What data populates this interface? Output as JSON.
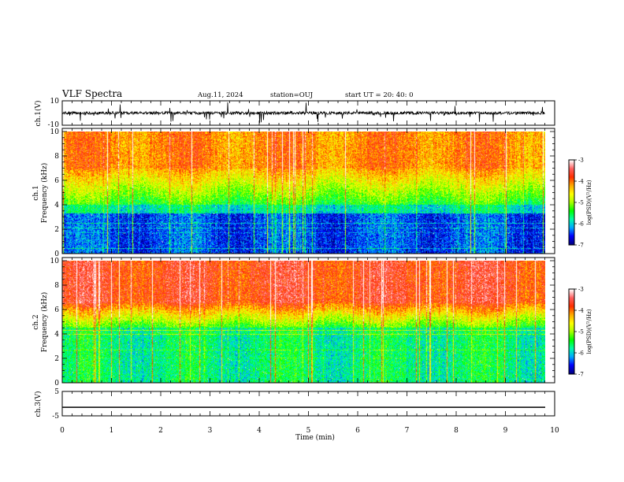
{
  "header": {
    "title": "VLF Spectra",
    "date": "Aug.11, 2024",
    "station": "station=OUJ",
    "start_time": "start  UT =   20: 40: 0"
  },
  "chart_data": [
    {
      "type": "line",
      "panel": "ch1-waveform",
      "ylabel": "ch.1(V)",
      "ylim": [
        -10,
        10
      ],
      "ytick_labels": [
        "10",
        "-10"
      ],
      "xlim": [
        0,
        10
      ],
      "baseline": 0,
      "note": "noisy waveform with spikes"
    },
    {
      "type": "heatmap",
      "panel": "ch1-spectrogram",
      "ylabel_line1": "ch.1",
      "ylabel_line2": "Frequency  (kHz)",
      "ylim": [
        0,
        10
      ],
      "ytick_labels": [
        "0",
        "2",
        "4",
        "6",
        "8",
        "10"
      ],
      "xlim": [
        0,
        9.8
      ],
      "colorbar": {
        "label": "log(PSD)(V²/Hz)",
        "range": [
          -7,
          -3
        ],
        "tick_labels": [
          "-3",
          "-4",
          "-5",
          "-6",
          "-7"
        ],
        "colors": [
          "#000080",
          "#0000ff",
          "#00aaff",
          "#00ffaa",
          "#00ff00",
          "#aaff00",
          "#ffff00",
          "#ffaa00",
          "#ff3000",
          "#ff6060",
          "#ffffff"
        ]
      }
    },
    {
      "type": "heatmap",
      "panel": "ch2-spectrogram",
      "ylabel_line1": "ch.2",
      "ylabel_line2": "Frequency  (kHz)",
      "ylim": [
        0,
        10
      ],
      "ytick_labels": [
        "0",
        "2",
        "4",
        "6",
        "8",
        "10"
      ],
      "xlim": [
        0,
        9.8
      ],
      "colorbar": {
        "label": "log(PSD)(V²/Hz)",
        "range": [
          -7,
          -3
        ],
        "tick_labels": [
          "-3",
          "-4",
          "-5",
          "-6",
          "-7"
        ],
        "colors": [
          "#000080",
          "#0000ff",
          "#00aaff",
          "#00ffaa",
          "#00ff00",
          "#aaff00",
          "#ffff00",
          "#ffaa00",
          "#ff3000",
          "#ff6060",
          "#ffffff"
        ]
      }
    },
    {
      "type": "line",
      "panel": "ch3-waveform",
      "ylabel": "ch.3(V)",
      "ylim": [
        -5,
        5
      ],
      "ytick_labels": [
        "5",
        "-5"
      ],
      "xlim": [
        0,
        9.8
      ],
      "constant_value": -1.5
    }
  ],
  "xaxis": {
    "label": "Time  (min)",
    "range": [
      0,
      10
    ],
    "tick_labels": [
      "0",
      "1",
      "2",
      "3",
      "4",
      "5",
      "6",
      "7",
      "8",
      "9",
      "10"
    ]
  }
}
